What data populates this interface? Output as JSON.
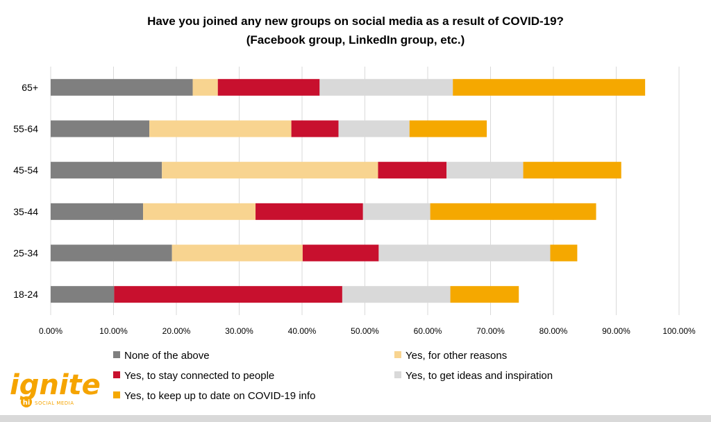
{
  "chart_data": {
    "type": "bar",
    "orientation": "horizontal",
    "stacked": true,
    "title": "Have you joined any new groups on social media as a result of COVID-19? (Facebook group, LinkedIn group, etc.)",
    "title_lines": [
      "Have you joined any new groups on social media as a result of COVID-19?",
      "(Facebook group, LinkedIn group, etc.)"
    ],
    "categories": [
      "65+",
      "55-64",
      "45-54",
      "35-44",
      "25-34",
      "18-24"
    ],
    "series": [
      {
        "name": "None of the above",
        "color": "#7f7f7f",
        "values": [
          22.6,
          15.7,
          17.7,
          14.7,
          19.3,
          10.1
        ]
      },
      {
        "name": "Yes, for other reasons",
        "color": "#f8d490",
        "values": [
          4.0,
          22.6,
          34.4,
          17.9,
          20.8,
          0.0
        ]
      },
      {
        "name": "Yes, to stay connected to people",
        "color": "#c8102e",
        "values": [
          16.2,
          7.5,
          10.9,
          17.1,
          12.1,
          36.3
        ]
      },
      {
        "name": "Yes, to get ideas and inspiration",
        "color": "#d9d9d9",
        "values": [
          21.2,
          11.3,
          12.2,
          10.7,
          27.3,
          17.2
        ]
      },
      {
        "name": "Yes, to keep up to date on COVID-19 info",
        "color": "#f5a800",
        "values": [
          30.6,
          12.3,
          15.6,
          26.4,
          4.3,
          10.9
        ]
      }
    ],
    "xlim": [
      0,
      100
    ],
    "xticks": [
      "0.00%",
      "10.00%",
      "20.00%",
      "30.00%",
      "40.00%",
      "50.00%",
      "60.00%",
      "70.00%",
      "80.00%",
      "90.00%",
      "100.00%"
    ],
    "xlabel": "",
    "ylabel": "",
    "grid": "vertical",
    "legend_position": "bottom"
  },
  "logo": {
    "main": "ignite",
    "badge": "hi",
    "sub": "SOCIAL MEDIA",
    "color": "#f5a400"
  }
}
